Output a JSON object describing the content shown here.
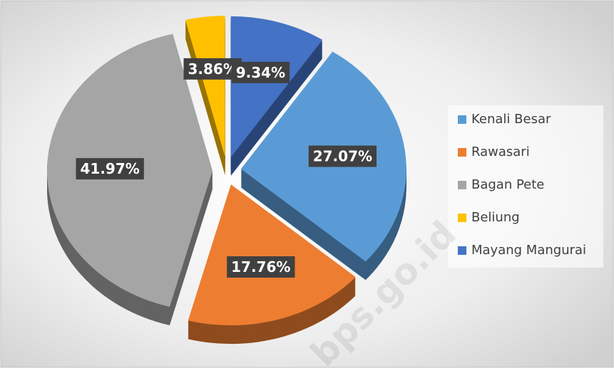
{
  "chart_data": {
    "type": "pie",
    "categories": [
      "Kenali Besar",
      "Rawasari",
      "Bagan Pete",
      "Beliung",
      "Mayang Mangurai"
    ],
    "values": [
      27.07,
      17.76,
      41.97,
      3.86,
      9.34
    ],
    "value_labels": [
      "27.07%",
      "17.76%",
      "41.97%",
      "3.86%",
      "9.34%"
    ],
    "colors": [
      "#5b9bd5",
      "#ed7d31",
      "#a5a5a5",
      "#ffc000",
      "#4472c4"
    ],
    "legend": "right",
    "watermark": "bps.go.id"
  }
}
